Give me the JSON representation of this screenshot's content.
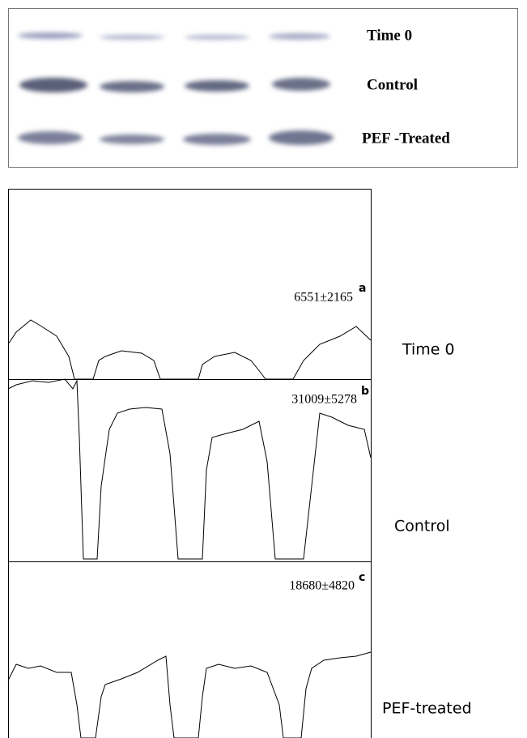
{
  "blot": {
    "rows": [
      "Time 0",
      "Control",
      "PEF -Treated"
    ]
  },
  "profiles": [
    {
      "value": "6551±2165",
      "letter": "a",
      "label": "Time 0"
    },
    {
      "value": "31009±5278",
      "letter": "b",
      "label": "Control"
    },
    {
      "value": "18680±4820",
      "letter": "c",
      "label": "PEF-treated"
    }
  ]
}
